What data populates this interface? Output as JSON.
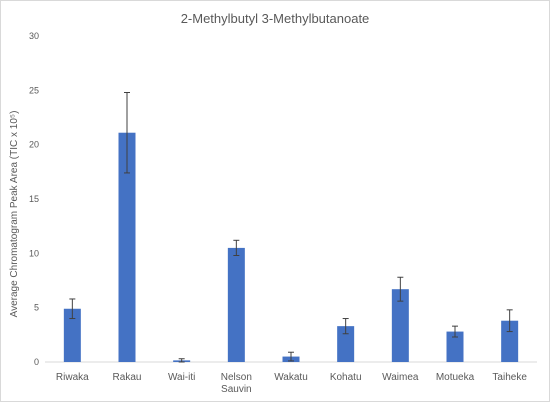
{
  "chart_data": {
    "type": "bar",
    "title": "2-Methylbutyl 3-Methylbutanoate",
    "ylabel": "Average Chromatogram Peak Area (TIC x 10⁵)",
    "xlabel": "",
    "ylim": [
      0,
      30
    ],
    "yticks": [
      0,
      5,
      10,
      15,
      20,
      25,
      30
    ],
    "grid": false,
    "bar_color": "#4472c4",
    "categories": [
      [
        "Riwaka"
      ],
      [
        "Rakau"
      ],
      [
        "Wai-iti"
      ],
      [
        "Nelson",
        "Sauvin"
      ],
      [
        "Wakatu"
      ],
      [
        "Kohatu"
      ],
      [
        "Waimea"
      ],
      [
        "Motueka"
      ],
      [
        "Taiheke"
      ]
    ],
    "values": [
      4.9,
      21.1,
      0.15,
      10.5,
      0.5,
      3.3,
      6.7,
      2.8,
      3.8
    ],
    "errors": [
      0.9,
      3.7,
      0.15,
      0.7,
      0.4,
      0.7,
      1.1,
      0.5,
      1.0
    ]
  }
}
